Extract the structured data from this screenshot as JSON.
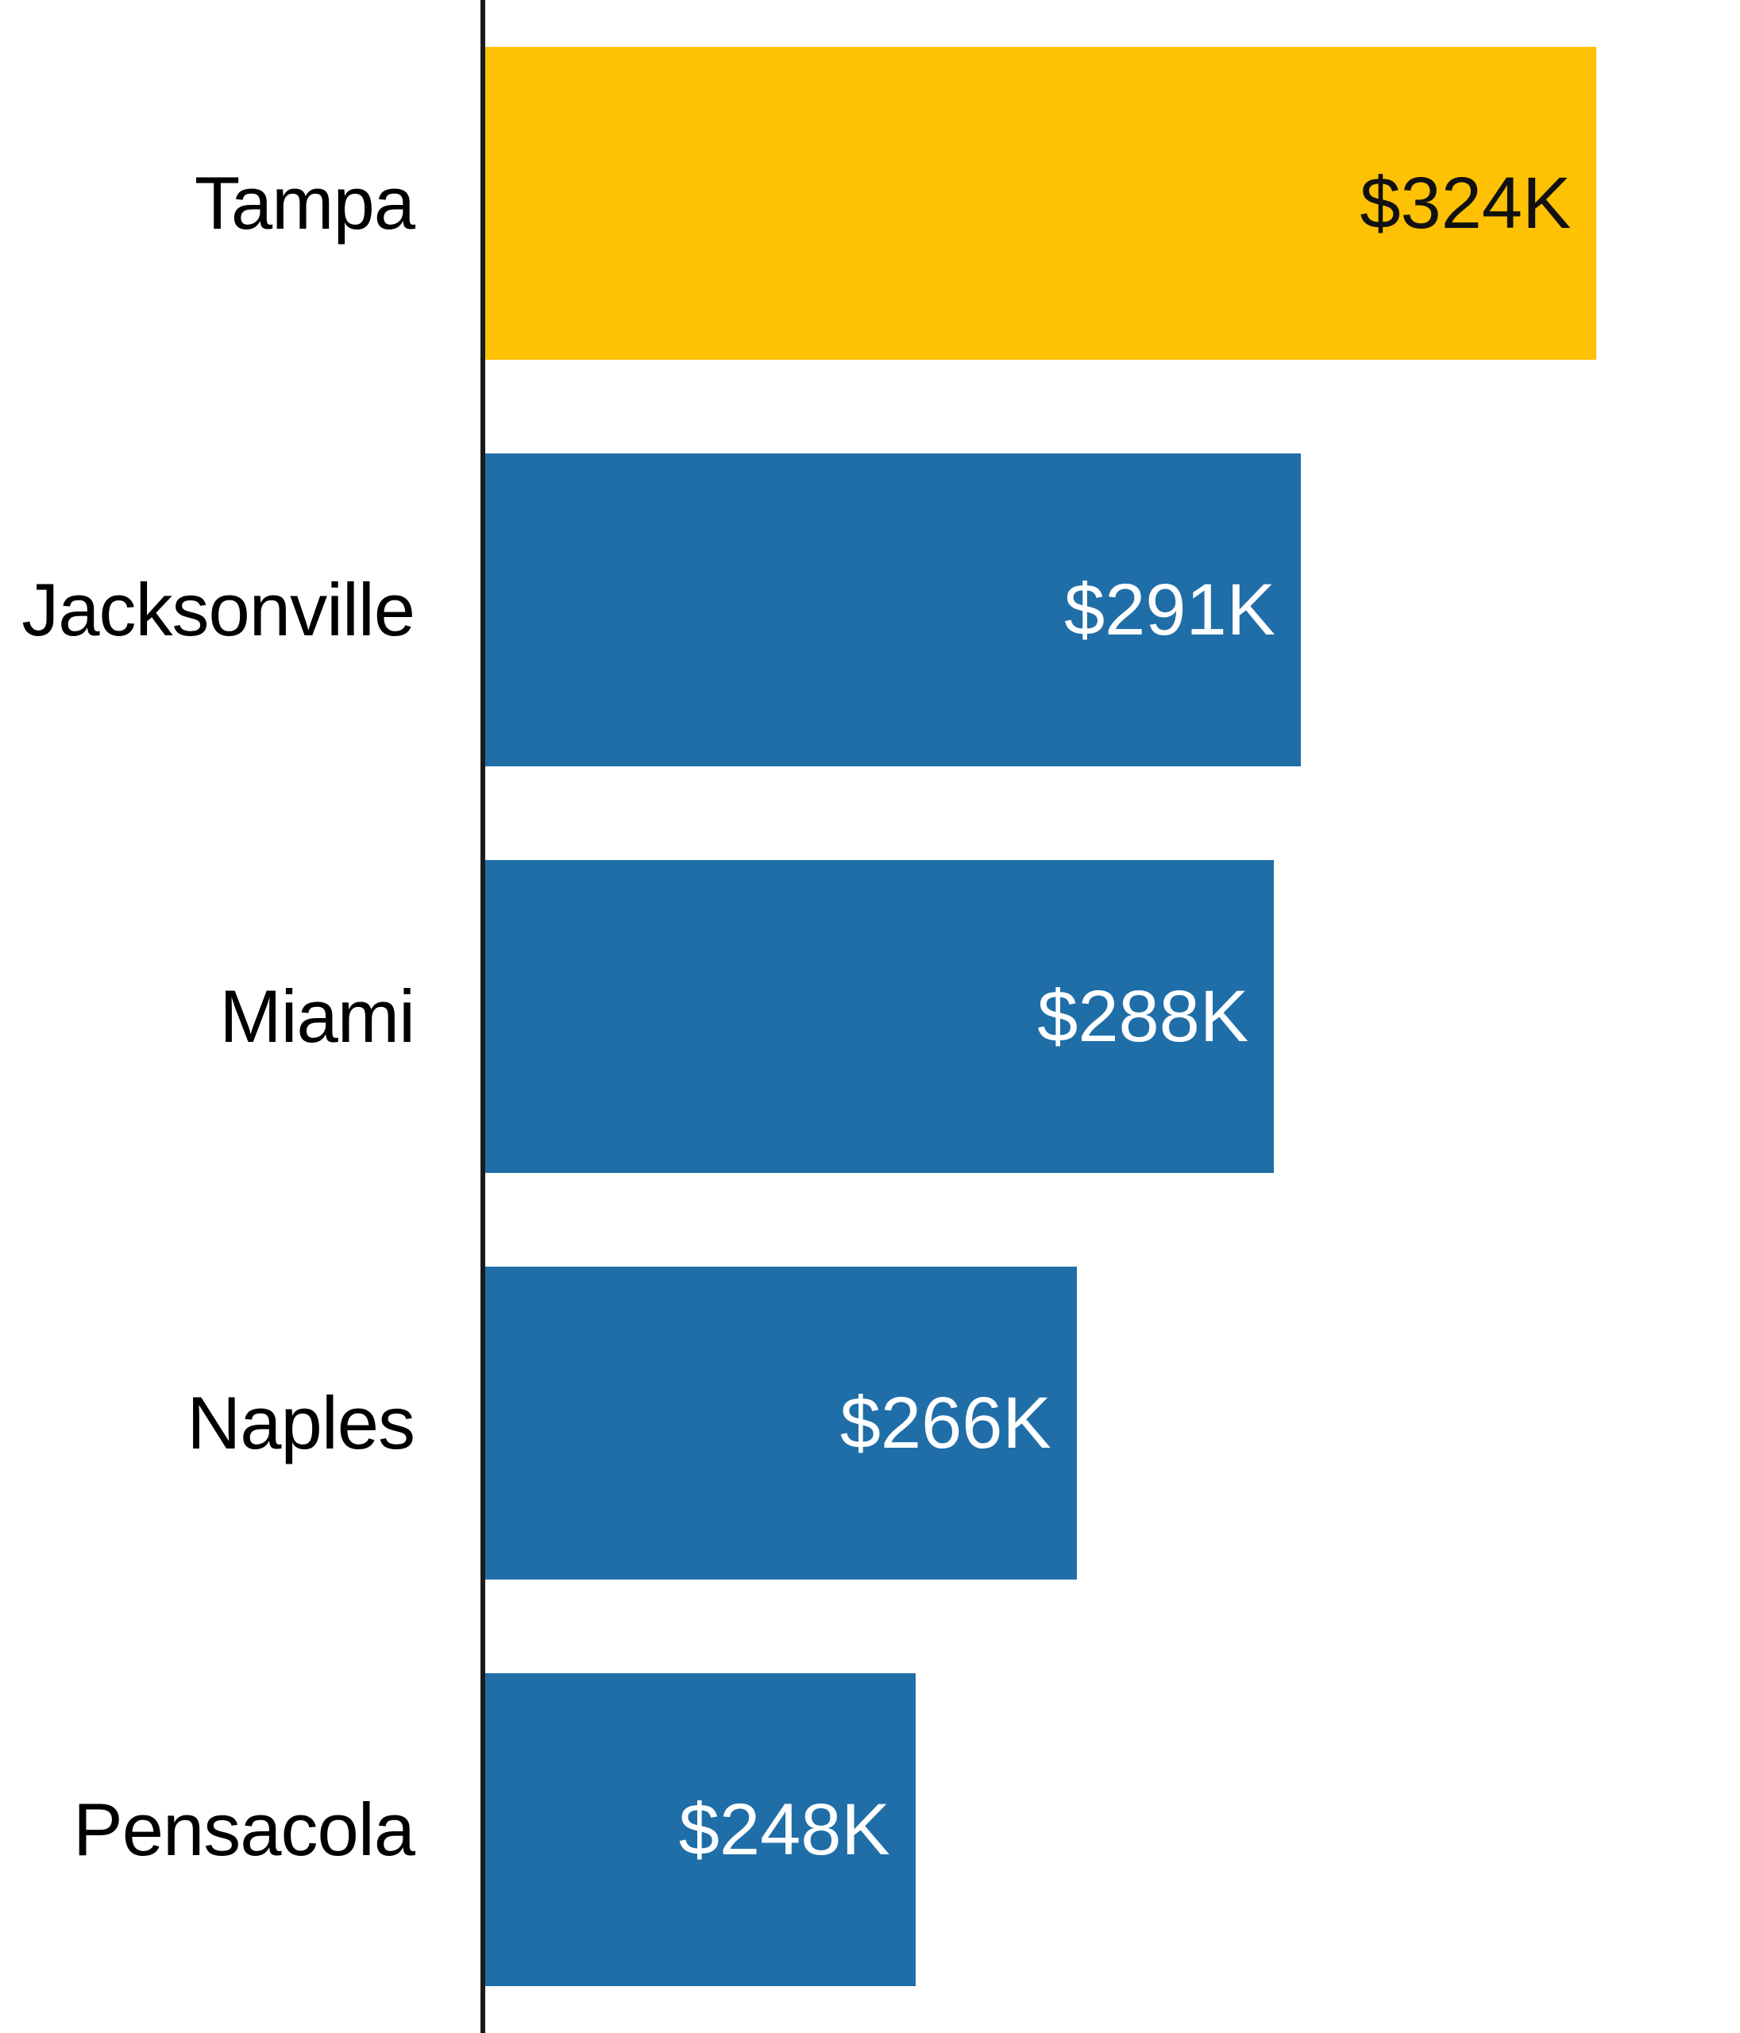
{
  "chart_data": {
    "type": "bar",
    "orientation": "horizontal",
    "title": "",
    "xlabel": "",
    "ylabel": "",
    "categories": [
      "Tampa",
      "Jacksonville",
      "Miami",
      "Naples",
      "Pensacola"
    ],
    "values": [
      324,
      291,
      288,
      266,
      248
    ],
    "value_labels": [
      "$324K",
      "$291K",
      "$288K",
      "$266K",
      "$248K"
    ],
    "value_unit": "USD thousands",
    "axis_range": [
      200,
      340
    ],
    "grid": false,
    "legend": "none",
    "highlight_index": 0,
    "colors": {
      "highlight_bar": "#FFC103",
      "default_bar": "#1F6EA8",
      "axis_line": "#1A1A1A",
      "category_text": "#000000",
      "label_on_highlight": "#111111",
      "label_on_default": "#FFFFFF",
      "background": "#FFFFFF"
    }
  }
}
